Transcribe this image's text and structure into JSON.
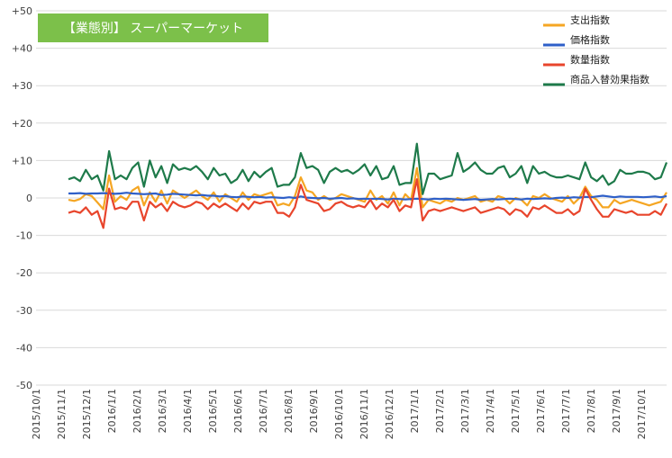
{
  "chart_data": {
    "type": "line",
    "title": "【業態別】 スーパーマーケット",
    "title_bg_color": "#7CC04A",
    "ylim": [
      -50,
      50
    ],
    "yticks": [
      50,
      40,
      30,
      20,
      10,
      0,
      -10,
      -20,
      -30,
      -40,
      -50
    ],
    "ytick_labels": [
      "+50",
      "+40",
      "+30",
      "+20",
      "+10",
      "0",
      "-10",
      "-20",
      "-30",
      "-40",
      "-50"
    ],
    "x_labels": [
      "2015/10/1",
      "2015/11/1",
      "2015/12/1",
      "2016/1/1",
      "2016/2/1",
      "2016/3/1",
      "2016/4/1",
      "2016/5/1",
      "2016/6/1",
      "2016/7/1",
      "2016/8/1",
      "2016/9/1",
      "2016/10/1",
      "2016/11/1",
      "2016/12/1",
      "2017/1/1",
      "2017/2/1",
      "2017/3/1",
      "2017/4/1",
      "2017/5/1",
      "2017/6/1",
      "2017/7/1",
      "2017/8/1",
      "2017/9/1",
      "2017/10/1"
    ],
    "grid": true,
    "legend_position": "top-right",
    "series": [
      {
        "name": "支出指数",
        "color": "#F5A623",
        "values": [
          -0.5,
          -0.8,
          -0.3,
          1.0,
          0.5,
          -1.2,
          -3.0,
          6.0,
          -1.0,
          0.5,
          -0.5,
          2.0,
          3.0,
          -2.0,
          1.5,
          -1.0,
          2.0,
          -1.5,
          2.0,
          1.0,
          0.0,
          1.0,
          2.0,
          0.5,
          -0.5,
          1.5,
          -1.0,
          1.0,
          0.0,
          -1.0,
          1.5,
          -0.5,
          1.0,
          0.5,
          1.0,
          1.5,
          -2.0,
          -1.5,
          -2.0,
          0.5,
          5.5,
          2.0,
          1.5,
          -0.5,
          0.5,
          -0.5,
          0.0,
          1.0,
          0.5,
          0.0,
          -0.5,
          -1.0,
          2.0,
          -0.5,
          0.5,
          -1.5,
          1.5,
          -2.0,
          1.0,
          -0.5,
          8.0,
          -2.5,
          -0.5,
          -1.0,
          -1.5,
          -0.5,
          -1.0,
          0.0,
          -0.5,
          0.0,
          0.5,
          -1.0,
          -0.5,
          -1.0,
          0.5,
          0.0,
          -1.5,
          0.0,
          -0.5,
          -2.0,
          0.5,
          0.0,
          1.0,
          0.0,
          -0.5,
          -1.0,
          0.5,
          -1.5,
          0.0,
          3.0,
          0.5,
          -0.5,
          -2.5,
          -2.5,
          -0.5,
          -1.5,
          -1.0,
          -0.5,
          -1.0,
          -1.5,
          -2.0,
          -1.5,
          -1.0,
          1.5
        ]
      },
      {
        "name": "価格指数",
        "color": "#2E5FC8",
        "values": [
          1.2,
          1.2,
          1.3,
          1.1,
          1.2,
          1.2,
          1.3,
          1.2,
          1.1,
          1.2,
          1.4,
          1.2,
          1.1,
          1.0,
          1.1,
          1.2,
          0.8,
          0.9,
          1.1,
          1.0,
          0.9,
          0.8,
          0.7,
          0.8,
          0.6,
          0.6,
          0.4,
          0.5,
          0.3,
          0.2,
          0.4,
          0.3,
          0.2,
          0.3,
          0.1,
          0.2,
          0.1,
          0.0,
          0.2,
          0.0,
          0.4,
          0.1,
          0.0,
          -0.1,
          0.0,
          -0.2,
          -0.1,
          0.0,
          -0.2,
          -0.1,
          -0.3,
          -0.2,
          -0.3,
          -0.2,
          -0.3,
          -0.4,
          -0.2,
          -0.3,
          -0.4,
          -0.3,
          -0.2,
          -0.3,
          -0.4,
          -0.2,
          -0.3,
          -0.2,
          -0.3,
          -0.4,
          -0.5,
          -0.4,
          -0.3,
          -0.5,
          -0.4,
          -0.3,
          -0.4,
          -0.3,
          -0.2,
          -0.3,
          -0.4,
          -0.2,
          -0.3,
          -0.2,
          -0.1,
          -0.2,
          0.0,
          0.1,
          0.0,
          0.2,
          0.1,
          0.3,
          0.2,
          0.4,
          0.6,
          0.4,
          0.2,
          0.4,
          0.3,
          0.3,
          0.3,
          0.2,
          0.3,
          0.4,
          0.2,
          0.5
        ]
      },
      {
        "name": "数量指数",
        "color": "#E8452C",
        "values": [
          -4.0,
          -3.5,
          -4.0,
          -2.5,
          -4.5,
          -3.5,
          -8.0,
          2.5,
          -3.0,
          -2.5,
          -3.0,
          -1.0,
          -1.0,
          -6.0,
          -1.0,
          -2.5,
          -1.5,
          -3.5,
          -1.0,
          -2.0,
          -2.5,
          -2.0,
          -1.0,
          -1.5,
          -3.0,
          -1.5,
          -2.5,
          -1.5,
          -2.5,
          -3.5,
          -1.5,
          -3.0,
          -1.0,
          -1.5,
          -1.0,
          -1.0,
          -4.0,
          -4.0,
          -5.0,
          -2.5,
          3.5,
          -0.5,
          -1.0,
          -1.5,
          -3.5,
          -3.0,
          -1.5,
          -1.0,
          -2.0,
          -2.5,
          -2.0,
          -2.5,
          -0.5,
          -3.0,
          -1.5,
          -2.5,
          -0.5,
          -3.5,
          -2.0,
          -2.5,
          5.0,
          -6.0,
          -3.5,
          -3.0,
          -3.5,
          -3.0,
          -2.5,
          -3.0,
          -3.5,
          -3.0,
          -2.5,
          -4.0,
          -3.5,
          -3.0,
          -2.5,
          -3.0,
          -4.5,
          -3.0,
          -3.5,
          -5.0,
          -2.5,
          -3.0,
          -2.0,
          -3.0,
          -4.0,
          -4.0,
          -3.0,
          -4.5,
          -3.5,
          2.5,
          -0.5,
          -3.0,
          -5.0,
          -5.0,
          -3.0,
          -3.5,
          -4.0,
          -3.5,
          -4.5,
          -4.5,
          -4.5,
          -3.5,
          -4.5,
          -1.5
        ]
      },
      {
        "name": "商品入替効果指数",
        "color": "#1E7A4A",
        "values": [
          5.0,
          5.5,
          4.5,
          7.5,
          5.0,
          6.0,
          2.0,
          12.5,
          5.0,
          6.0,
          5.0,
          8.0,
          9.5,
          3.0,
          10.0,
          5.5,
          8.5,
          4.0,
          9.0,
          7.5,
          8.0,
          7.5,
          8.5,
          7.0,
          5.0,
          8.0,
          6.0,
          6.5,
          4.0,
          5.0,
          7.5,
          4.5,
          7.0,
          5.5,
          7.0,
          8.0,
          3.0,
          3.5,
          3.5,
          5.5,
          12.0,
          8.0,
          8.5,
          7.5,
          4.0,
          7.0,
          8.0,
          7.0,
          7.5,
          6.5,
          7.5,
          9.0,
          6.0,
          8.5,
          5.0,
          5.5,
          8.5,
          3.5,
          4.0,
          4.0,
          14.5,
          1.0,
          6.5,
          6.5,
          5.0,
          5.5,
          6.0,
          12.0,
          7.0,
          8.0,
          9.5,
          7.5,
          6.5,
          6.5,
          8.0,
          8.5,
          5.5,
          6.5,
          8.5,
          4.0,
          8.5,
          6.5,
          7.0,
          6.0,
          5.5,
          5.5,
          6.0,
          5.5,
          5.0,
          9.5,
          5.5,
          4.5,
          6.0,
          3.5,
          4.5,
          7.5,
          6.5,
          6.5,
          7.0,
          7.0,
          6.5,
          5.0,
          5.5,
          9.5
        ]
      }
    ]
  }
}
